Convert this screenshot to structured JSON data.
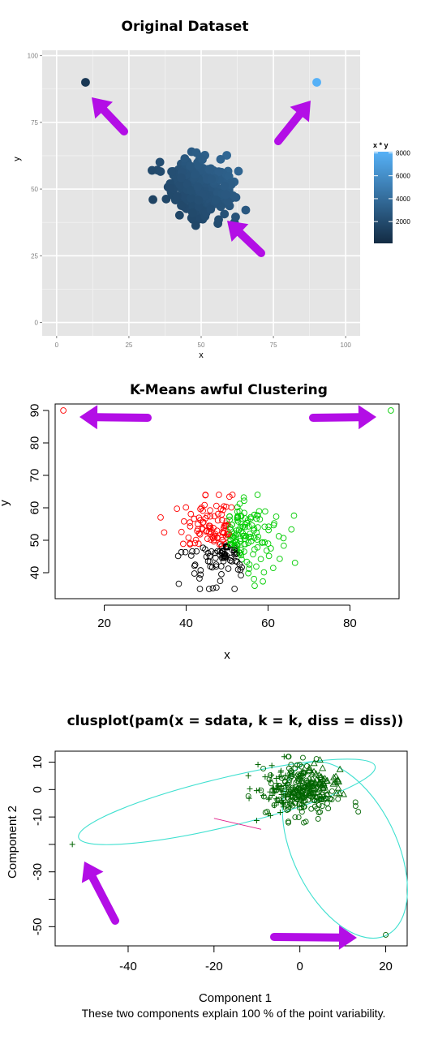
{
  "colors": {
    "arrow": "#b30ee6",
    "panel_bg": "#e5e5e5",
    "grid": "#ffffff",
    "ellipse": "#40e0d0",
    "clus_point": "#006400",
    "seg": "#e0208a"
  },
  "charts": [
    {
      "type": "scatter",
      "title": "Original Dataset",
      "xlabel": "x",
      "ylabel": "y",
      "xlim": [
        -5,
        105
      ],
      "ylim": [
        -5,
        102
      ],
      "xticks": [
        "0",
        "25",
        "50",
        "75",
        "100"
      ],
      "yticks": [
        "0",
        "25",
        "50",
        "75",
        "100"
      ],
      "legend_title": "x * y",
      "legend_ticks": [
        "2000",
        "4000",
        "6000",
        "8000"
      ],
      "legend_range": [
        100,
        8100
      ],
      "legend_placement": "right",
      "outliers": [
        {
          "x": 10,
          "y": 90
        },
        {
          "x": 90,
          "y": 90
        }
      ],
      "cluster": {
        "center": [
          50,
          50
        ],
        "sd": 6,
        "n": 300,
        "note": "dense cloud, about 300 points"
      }
    },
    {
      "type": "scatter",
      "title": "K-Means awful Clustering",
      "xlabel": "x",
      "ylabel": "y",
      "xlim": [
        8,
        92
      ],
      "ylim": [
        32,
        92
      ],
      "xticks": [
        "20",
        "40",
        "60",
        "80"
      ],
      "yticks": [
        "40",
        "50",
        "60",
        "70",
        "80",
        "90"
      ],
      "series": [
        {
          "color": "#ff0000",
          "region": "upper-left"
        },
        {
          "color": "#00cc00",
          "region": "right"
        },
        {
          "color": "#000000",
          "region": "lower"
        }
      ],
      "outliers": [
        {
          "x": 10,
          "y": 90,
          "color": "#ff0000"
        },
        {
          "x": 90,
          "y": 90,
          "color": "#00cc00"
        }
      ]
    },
    {
      "type": "scatter",
      "title": "clusplot(pam(x = sdata, k = k, diss = diss))",
      "xlabel": "Component 1",
      "ylabel": "Component 2",
      "subtitle": "These two components explain 100 % of the point variability.",
      "xlim": [
        -57,
        25
      ],
      "ylim": [
        -57,
        14
      ],
      "xticks": [
        "-40",
        "-20",
        "0",
        "20"
      ],
      "yticks": [
        "10",
        "0",
        "-10",
        "-30",
        "-50"
      ],
      "outliers": [
        {
          "x": -53,
          "y": -20,
          "shape": "plus"
        },
        {
          "x": 20,
          "y": -53,
          "shape": "circle"
        }
      ]
    }
  ]
}
